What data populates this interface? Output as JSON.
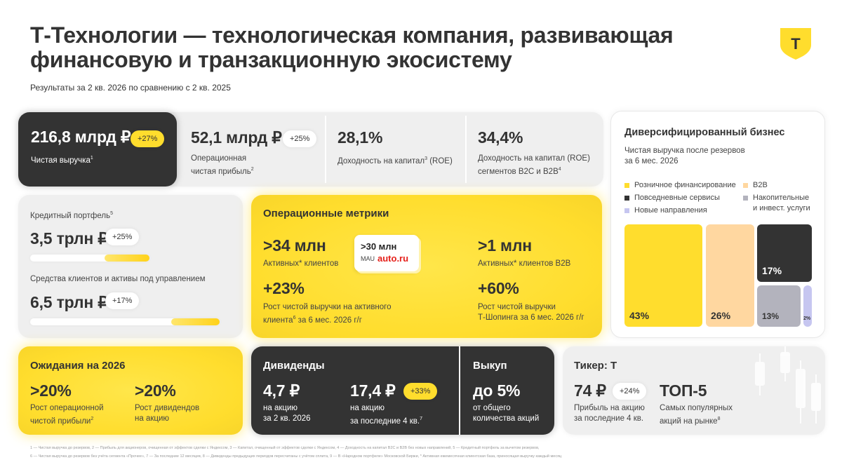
{
  "header": {
    "title": "Т-Технологии — технологическая компания, развивающая финансовую и транзакционную экосистему",
    "subtitle": "Результаты за 2 кв. 2026 по сравнению с 2 кв. 2025",
    "logo_letter": "Т"
  },
  "top_metrics": [
    {
      "value": "216,8 млрд ₽",
      "badge": "+27%",
      "label": "Чистая выручка",
      "sup": "1"
    },
    {
      "value": "52,1 млрд ₽",
      "badge": "+25%",
      "label_line1": "Операционная",
      "label_line2": "чистая прибыль",
      "sup": "2"
    },
    {
      "value": "28,1%",
      "label": "Доходность на капитал",
      "sup": "3",
      "label_tail": " (ROE)"
    },
    {
      "value": "34,4%",
      "label_line1": "Доходность на капитал (ROE)",
      "label_line2": "сегментов B2C и B2B",
      "sup": "4"
    }
  ],
  "portfolio": {
    "credit_label": "Кредитный портфель",
    "credit_sup": "5",
    "credit_value": "3,5 трлн ₽",
    "credit_badge": "+25%",
    "credit_fill_pct": 25,
    "assets_label": "Средства клиентов и активы под управлением",
    "assets_value": "6,5 трлн ₽",
    "assets_badge": "+17%",
    "assets_fill_pct": 17
  },
  "operational": {
    "title": "Операционные метрики",
    "clients_value": ">34 млн",
    "clients_label": "Активных* клиентов",
    "auto_value": ">30 млн",
    "auto_mau": "MAU",
    "auto_brand": "auto.ru",
    "b2b_value": ">1 млн",
    "b2b_label": "Активных* клиентов B2B",
    "growth_value": "+23%",
    "growth_line1": "Рост чистой выручки на активного",
    "growth_line2": "клиента",
    "growth_sup": "6",
    "growth_tail": " за 6 мес. 2026 г/г",
    "shop_value": "+60%",
    "shop_line1": "Рост чистой выручки",
    "shop_line2": "Т-Шопинга за 6 мес. 2026 г/г"
  },
  "diversified": {
    "title": "Диверсифицированный бизнес",
    "subtitle_line1": "Чистая выручка после резервов",
    "subtitle_line2": "за 6 мес. 2026",
    "legend": [
      {
        "label": "Розничное финансирование",
        "color": "#ffdd2d"
      },
      {
        "label": "B2B",
        "color": "#ffd7a0"
      },
      {
        "label": "Повседневные сервисы",
        "color": "#333333"
      },
      {
        "label": "Накопительные",
        "label2": "и инвест. услуги",
        "color": "#b3b3bd"
      },
      {
        "label": "Новые направления",
        "color": "#c6c6f0"
      }
    ],
    "tiles": [
      {
        "label": "43%",
        "color": "#ffdd2d",
        "text_color": "#333333"
      },
      {
        "label": "26%",
        "color": "#ffd7a0",
        "text_color": "#333333"
      },
      {
        "label": "17%",
        "color": "#333333",
        "text_color": "#ffffff"
      },
      {
        "label": "13%",
        "color": "#b3b3bd",
        "text_color": "#333333"
      },
      {
        "label": "2%",
        "color": "#c6c6f0",
        "text_color": "#333333"
      }
    ]
  },
  "expectations": {
    "title": "Ожидания на 2026",
    "op_value": ">20%",
    "op_line1": "Рост операционной",
    "op_line2": "чистой прибыли",
    "op_sup": "2",
    "div_value": ">20%",
    "div_line1": "Рост дивидендов",
    "div_line2": "на акцию"
  },
  "dividends": {
    "title": "Дивиденды",
    "q_value": "4,7 ₽",
    "q_line1": "на акцию",
    "q_line2": "за 2 кв. 2026",
    "ltm_value": "17,4 ₽",
    "ltm_badge": "+33%",
    "ltm_line1": "на акцию",
    "ltm_line2": "за последние 4 кв.",
    "ltm_sup": "7"
  },
  "buyback": {
    "title": "Выкуп",
    "value": "до 5%",
    "line1": "от общего",
    "line2": "количества акций"
  },
  "ticker": {
    "title": "Тикер: Т",
    "dps_value": "74 ₽",
    "dps_badge": "+24%",
    "dps_line1": "Прибыль на акцию",
    "dps_line2": "за последние 4 кв.",
    "top_value": "ТОП-5",
    "top_line1": "Самых популярных",
    "top_line2": "акций на рынке",
    "top_sup": "8"
  },
  "footnotes": {
    "line1": "1 — Чистая выручка до резервов, 2 — Прибыль для акционеров, очищенная от эффектов сделки с Яндексом, 3 — Капитал, очищенный от эффектов сделки с Яндексом, 4 — Доходность на капитал B2C и B2B без новых направлений, 5 — Кредитный портфель за вычетом резервов,",
    "line2": "6 — Чистая выручка до резервов без учёта сегмента «Прочее», 7 — За последние 12 месяцев, 8 — Дивиденды предыдущих периодов пересчитаны с учётом сплита, 9 — В «Народном портфеле» Московской Биржи, * Активная ежемесячная клиентская база, приносящая выручку каждый месяц"
  }
}
